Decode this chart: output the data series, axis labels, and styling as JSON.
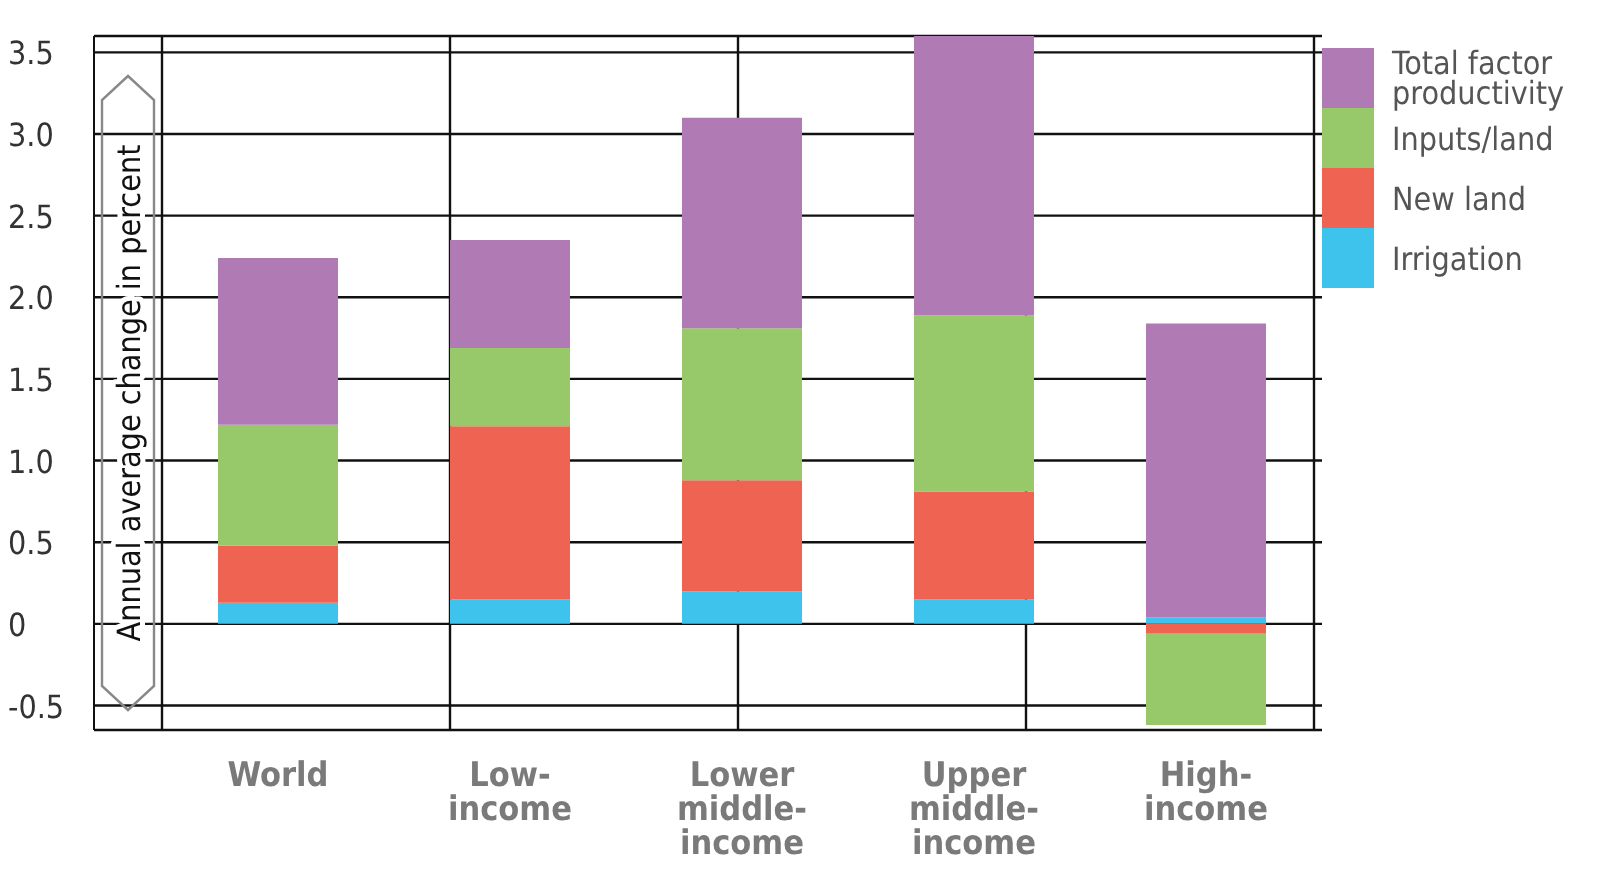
{
  "chart_data": {
    "type": "bar",
    "stacked": true,
    "ylabel": "Annual average change in percent",
    "categories": [
      "World",
      "Low-income",
      "Lower middle-income",
      "Upper middle-income",
      "High-income"
    ],
    "series": [
      {
        "name": "Irrigation",
        "color": "#3ec3ec",
        "values": [
          0.13,
          0.15,
          0.2,
          0.15,
          0.04
        ]
      },
      {
        "name": "New land",
        "color": "#ee6352",
        "values": [
          0.35,
          1.06,
          0.68,
          0.66,
          -0.06
        ]
      },
      {
        "name": "Inputs/land",
        "color": "#97c96a",
        "values": [
          0.74,
          0.48,
          0.93,
          1.08,
          -0.56
        ]
      },
      {
        "name": "Total factor productivity",
        "color": "#b07ab5",
        "values": [
          1.02,
          0.66,
          1.29,
          1.71,
          1.8
        ]
      }
    ],
    "ylim": [
      -0.65,
      3.6
    ],
    "yticks": [
      {
        "value": -0.5,
        "label": "-0.5"
      },
      0,
      {
        "value": 0.5,
        "label": "0.5"
      },
      {
        "value": 1,
        "label": "1.0"
      },
      {
        "value": 1.5,
        "label": "1.5"
      },
      {
        "value": 2,
        "label": "2.0"
      },
      {
        "value": 2.5,
        "label": "2.5"
      },
      {
        "value": 3,
        "label": "3.0"
      },
      {
        "value": 3.5,
        "label": "3.5"
      }
    ],
    "grid": true,
    "legend": "top right"
  }
}
